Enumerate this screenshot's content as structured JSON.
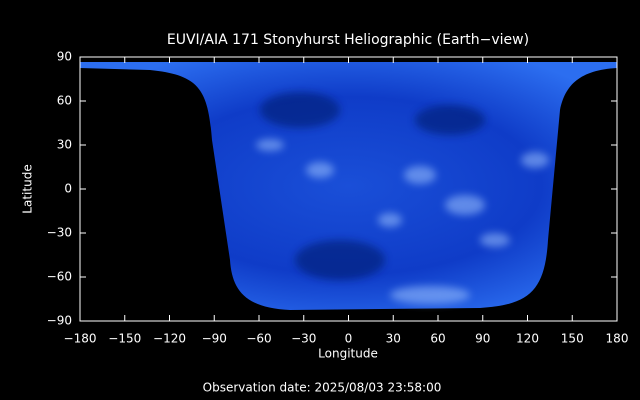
{
  "chart_data": {
    "type": "image",
    "title": "EUVI/AIA 171 Stonyhurst Heliographic (Earth−view)",
    "x_label": "Longitude",
    "y_label": "Latitude",
    "footer": "Observation date: 2025/08/03 23:58:00",
    "xlim": [
      -180,
      180
    ],
    "ylim": [
      -90,
      90
    ],
    "xticks": [
      {
        "value": -180,
        "label": "−180"
      },
      {
        "value": -150,
        "label": "−150"
      },
      {
        "value": -120,
        "label": "−120"
      },
      {
        "value": -90,
        "label": "−90"
      },
      {
        "value": -60,
        "label": "−60"
      },
      {
        "value": -30,
        "label": "−30"
      },
      0,
      30,
      60,
      90,
      120,
      150,
      180
    ],
    "yticks": [
      {
        "value": -90,
        "label": "−90"
      },
      {
        "value": -60,
        "label": "−60"
      },
      {
        "value": -30,
        "label": "−30"
      },
      0,
      30,
      60,
      90
    ]
  }
}
